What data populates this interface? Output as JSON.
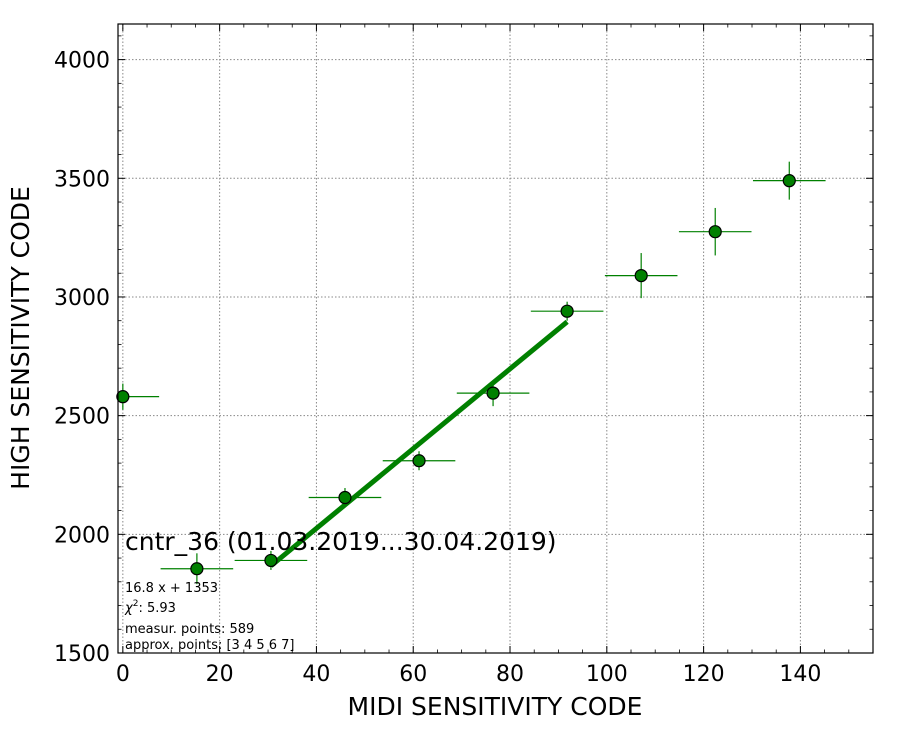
{
  "chart_data": {
    "type": "scatter",
    "xlabel": "MIDI SENSITIVITY CODE",
    "ylabel": "HIGH SENSITIVITY CODE",
    "xlim": [
      -1,
      155
    ],
    "ylim": [
      1500,
      4150
    ],
    "xticks": [
      0,
      20,
      40,
      60,
      80,
      100,
      120,
      140
    ],
    "yticks": [
      1500,
      2000,
      2500,
      3000,
      3500,
      4000
    ],
    "grid": true,
    "grid_style": "dotted",
    "marker_color": "#008000",
    "fit_color": "#008000",
    "points": [
      {
        "x": 0,
        "y": 2580,
        "xerr": 7.5,
        "yerr": 55
      },
      {
        "x": 15.3,
        "y": 1855,
        "xerr": 7.5,
        "yerr": 65
      },
      {
        "x": 30.6,
        "y": 1890,
        "xerr": 7.5,
        "yerr": 40
      },
      {
        "x": 45.9,
        "y": 2155,
        "xerr": 7.5,
        "yerr": 40
      },
      {
        "x": 61.2,
        "y": 2310,
        "xerr": 7.5,
        "yerr": 40
      },
      {
        "x": 76.5,
        "y": 2595,
        "xerr": 7.5,
        "yerr": 55
      },
      {
        "x": 91.8,
        "y": 2940,
        "xerr": 7.5,
        "yerr": 40
      },
      {
        "x": 107.1,
        "y": 3090,
        "xerr": 7.5,
        "yerr": 95
      },
      {
        "x": 122.4,
        "y": 3275,
        "xerr": 7.5,
        "yerr": 100
      },
      {
        "x": 137.7,
        "y": 3490,
        "xerr": 7.5,
        "yerr": 80
      }
    ],
    "fit_line": {
      "slope": 16.8,
      "intercept": 1353,
      "x_start": 30.6,
      "x_end": 91.8
    },
    "annotation_title": "cntr_36 (01.03.2019...30.04.2019)",
    "annotation_lines": {
      "fit": "16.8 x + 1353",
      "chi_prefix": "χ",
      "chi_sup": "2",
      "chi_value": ": 5.93",
      "measur": "measur. points: 589",
      "approx": "approx. points: [3 4 5 6 7]"
    }
  }
}
